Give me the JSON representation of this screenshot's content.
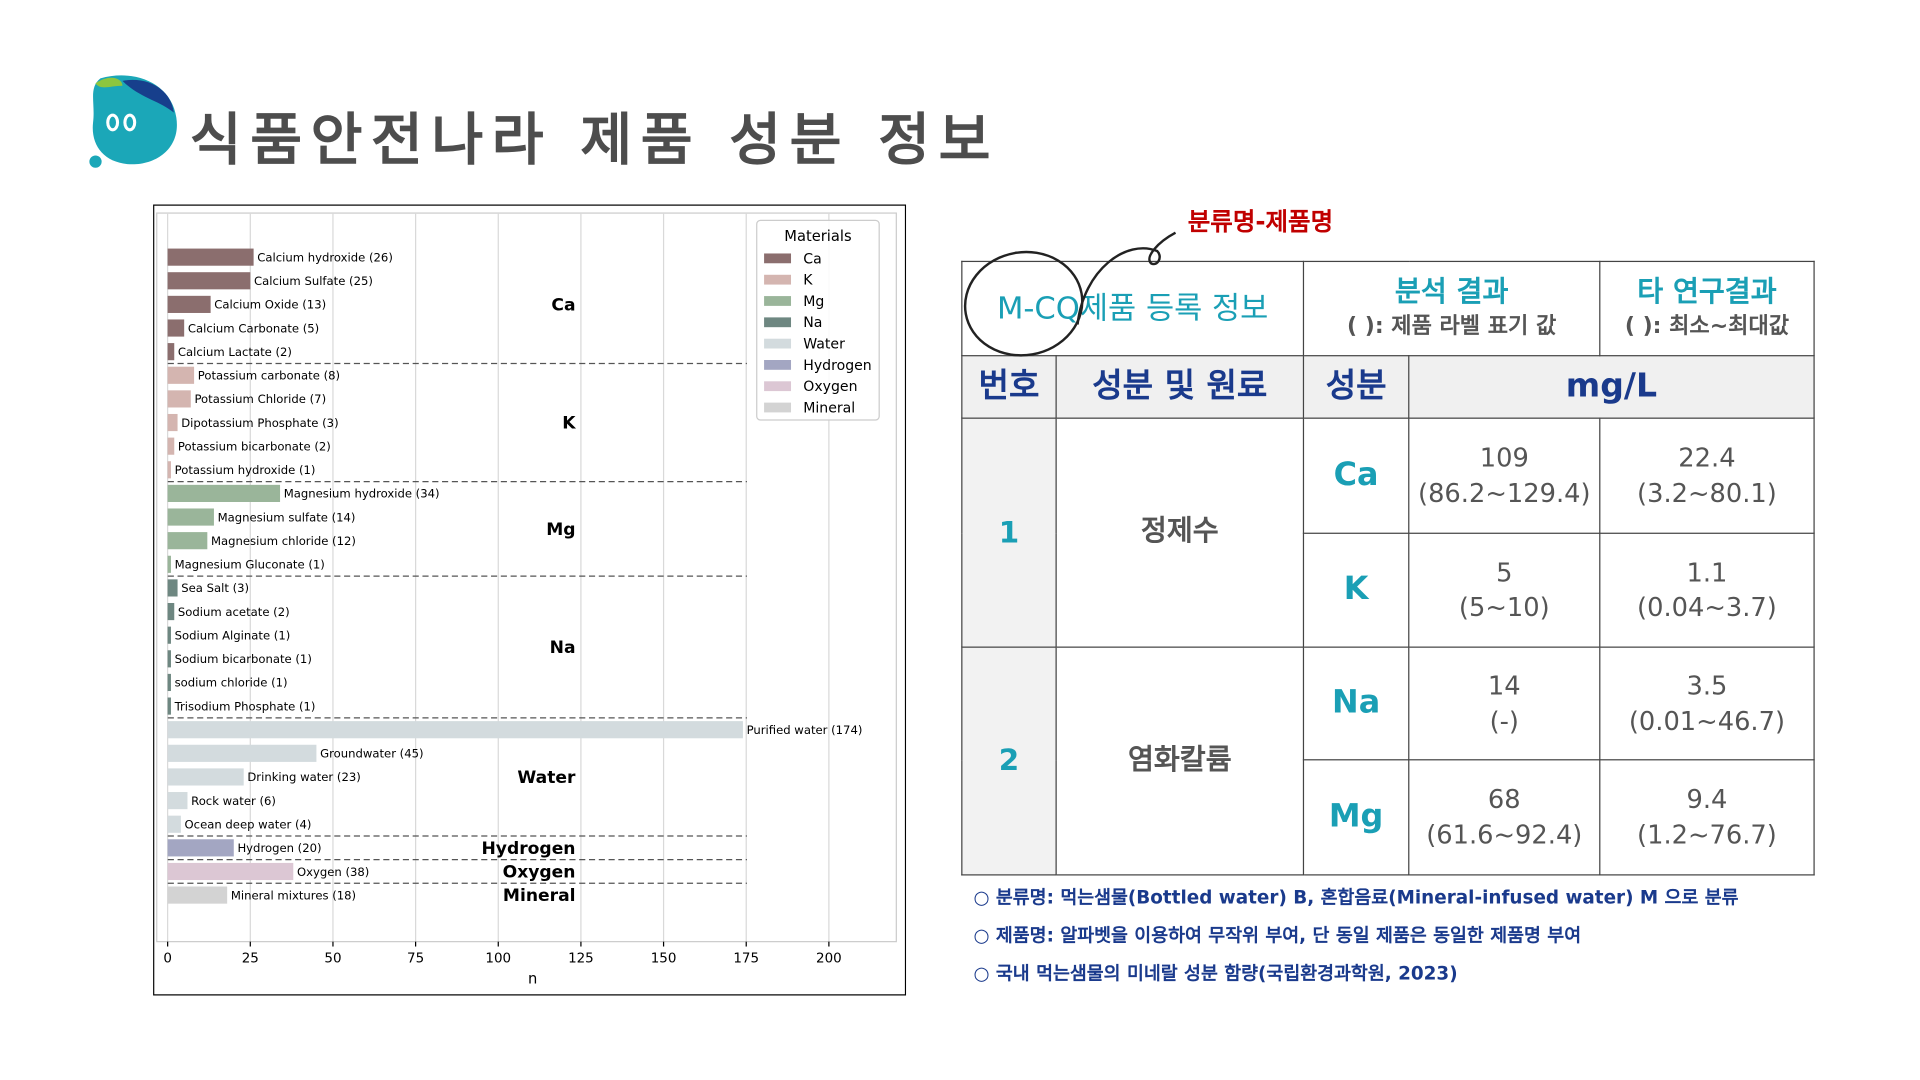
{
  "header": {
    "title": "식품안전나라 제품 성분 정보"
  },
  "chart_data": {
    "type": "bar",
    "orientation": "horizontal",
    "legend_title": "Materials",
    "legend": "upper right",
    "xlabel": "n",
    "grid": true,
    "xlim": [
      -3.3,
      220.4
    ],
    "xticks": [
      0,
      25,
      50,
      75,
      100,
      125,
      150,
      175,
      200
    ],
    "series": [
      {
        "name": "Ca",
        "color": "#8b6e6e",
        "values": [
          26,
          25,
          13,
          5,
          2
        ],
        "value_labels": [
          "Calcium hydroxide (26)",
          "Calcium Sulfate (25)",
          "Calcium Oxide (13)",
          "Calcium Carbonate (5)",
          "Calcium Lactate (2)"
        ]
      },
      {
        "name": "K",
        "color": "#d4b5b0",
        "values": [
          8,
          7,
          3,
          2,
          1
        ],
        "value_labels": [
          "Potassium carbonate (8)",
          "Potassium Chloride (7)",
          "Dipotassium Phosphate (3)",
          "Potassium bicarbonate (2)",
          "Potassium hydroxide (1)"
        ]
      },
      {
        "name": "Mg",
        "color": "#9ab59a",
        "values": [
          34,
          14,
          12,
          1
        ],
        "value_labels": [
          "Magnesium hydroxide (34)",
          "Magnesium sulfate (14)",
          "Magnesium chloride (12)",
          "Magnesium Gluconate (1)"
        ]
      },
      {
        "name": "Na",
        "color": "#6e8781",
        "values": [
          3,
          2,
          1,
          1,
          1,
          1
        ],
        "value_labels": [
          "Sea Salt (3)",
          "Sodium acetate (2)",
          "Sodium Alginate (1)",
          "Sodium bicarbonate (1)",
          "sodium chloride (1)",
          "Trisodium Phosphate (1)"
        ]
      },
      {
        "name": "Water",
        "color": "#d3dbde",
        "values": [
          174,
          45,
          23,
          6,
          4
        ],
        "value_labels": [
          "Purified water (174)",
          "Groundwater (45)",
          "Drinking water (23)",
          "Rock water (6)",
          "Ocean deep water (4)"
        ]
      },
      {
        "name": "Hydrogen",
        "color": "#a3a6c2",
        "values": [
          20
        ],
        "value_labels": [
          "Hydrogen (20)"
        ]
      },
      {
        "name": "Oxygen",
        "color": "#dcc7d4",
        "values": [
          38
        ],
        "value_labels": [
          "Oxygen (38)"
        ]
      },
      {
        "name": "Mineral",
        "color": "#d3d3d3",
        "values": [
          18
        ],
        "value_labels": [
          "Mineral mixtures (18)"
        ]
      }
    ]
  },
  "annotation": "분류명-제품명",
  "table": {
    "header": {
      "registration": "M-CQ제품 등록 정보",
      "analysis": "분석 결과",
      "analysis_note": "( ): 제품 라벨 표기 값",
      "other": "타 연구결과",
      "other_note": "( ): 최소~최대값"
    },
    "columns": [
      "번호",
      "성분 및 원료",
      "성분",
      "mg/L"
    ],
    "rows": [
      {
        "no": "1",
        "material": "정제수",
        "components": [
          {
            "name": "Ca",
            "analysis": "109",
            "analysis_range": "(86.2~129.4)",
            "other": "22.4",
            "other_range": "(3.2~80.1)"
          },
          {
            "name": "K",
            "analysis": "5",
            "analysis_range": "(5~10)",
            "other": "1.1",
            "other_range": "(0.04~3.7)"
          }
        ]
      },
      {
        "no": "2",
        "material": "염화칼륨",
        "components": [
          {
            "name": "Na",
            "analysis": "14",
            "analysis_range": "(-)",
            "other": "3.5",
            "other_range": "(0.01~46.7)"
          },
          {
            "name": "Mg",
            "analysis": "68",
            "analysis_range": "(61.6~92.4)",
            "other": "9.4",
            "other_range": "(1.2~76.7)"
          }
        ]
      }
    ]
  },
  "notes": [
    "○ 분류명: 먹는샘물(Bottled water) B, 혼합음료(Mineral-infused water) M 으로 분류",
    "○ 제품명: 알파벳을 이용하여 무작위 부여, 단 동일 제품은 동일한 제품명 부여",
    "○ 국내 먹는샘물의 미네랄 성분 함량(국립환경과학원, 2023)"
  ]
}
